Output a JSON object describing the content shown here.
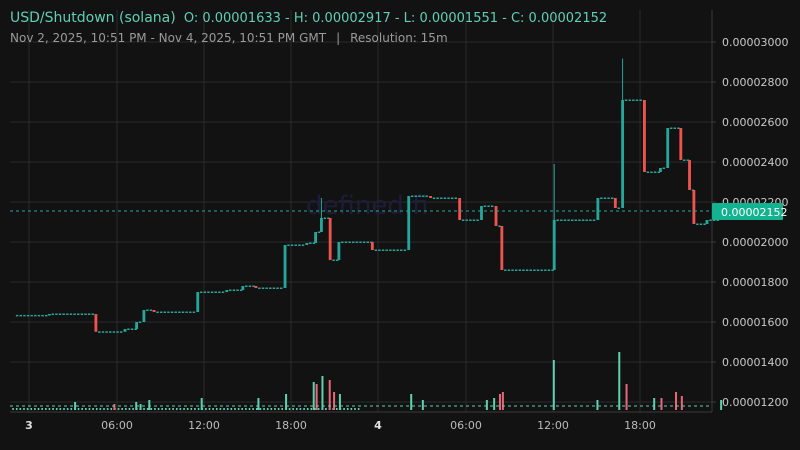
{
  "header": {
    "symbol": "USD/Shutdown (solana)",
    "ohlc": "O: 0.00001633 - H: 0.00002917 - L: 0.00001551 - C: 0.00002152",
    "range": "Nov 2, 2025, 10:51 PM - Nov 4, 2025, 10:51 PM GMT",
    "separator": "|",
    "resolution": "Resolution: 15m"
  },
  "watermark": "defined.fi",
  "colors": {
    "up": "#26a69a",
    "down": "#ef5350",
    "up_volume": "#5fd0b0",
    "down_volume": "#e8687a",
    "background": "#121212",
    "grid": "#2a2a2a",
    "price_tag": "#13b38f"
  },
  "current_price_label": "0.00002152",
  "chart_data": {
    "type": "candlestick",
    "title": "USD/Shutdown (solana)",
    "resolution": "15m",
    "xlabel": "",
    "ylabel": "",
    "ylim": [
      1.12e-05,
      3.1e-05
    ],
    "y_ticks": [
      "0.00003000",
      "0.00002800",
      "0.00002600",
      "0.00002400",
      "0.00002200",
      "0.00002000",
      "0.00001800",
      "0.00001600",
      "0.00001400",
      "0.00001200"
    ],
    "x_ticks": [
      "3",
      "06:00",
      "12:00",
      "18:00",
      "4",
      "06:00",
      "12:00",
      "18:00"
    ],
    "grid": true,
    "summary": {
      "open": 1.633e-05,
      "high": 2.917e-05,
      "low": 1.551e-05,
      "close": 2.152e-05
    },
    "key_moves": [
      {
        "time": "Nov 3 ~04:30",
        "open": 1.64e-05,
        "close": 1.551e-05,
        "dir": "down"
      },
      {
        "time": "Nov 3 ~07:30",
        "open": 1.57e-05,
        "close": 1.66e-05,
        "dir": "up"
      },
      {
        "time": "Nov 3 ~11:30",
        "open": 1.65e-05,
        "close": 1.75e-05,
        "dir": "up"
      },
      {
        "time": "Nov 3 ~17:30",
        "open": 1.78e-05,
        "close": 1.99e-05,
        "dir": "up"
      },
      {
        "time": "Nov 3 ~20:00",
        "open": 2.02e-05,
        "close": 2.12e-05,
        "high": 2.22e-05,
        "dir": "up"
      },
      {
        "time": "Nov 3 ~21:00",
        "open": 2.11e-05,
        "close": 1.91e-05,
        "dir": "down"
      },
      {
        "time": "Nov 4 ~02:00",
        "open": 1.96e-05,
        "close": 2.23e-05,
        "dir": "up"
      },
      {
        "time": "Nov 4 ~05:30",
        "open": 2.22e-05,
        "close": 2.11e-05,
        "dir": "down"
      },
      {
        "time": "Nov 4 ~08:00",
        "open": 2.08e-05,
        "close": 1.86e-05,
        "dir": "down"
      },
      {
        "time": "Nov 4 ~12:00",
        "open": 1.86e-05,
        "close": 2.11e-05,
        "high": 2.39e-05,
        "dir": "up"
      },
      {
        "time": "Nov 4 ~16:45",
        "open": 2.17e-05,
        "close": 2.71e-05,
        "high": 2.917e-05,
        "dir": "up"
      },
      {
        "time": "Nov 4 ~17:30",
        "open": 2.7e-05,
        "close": 2.35e-05,
        "dir": "down"
      },
      {
        "time": "Nov 4 ~19:00",
        "open": 2.37e-05,
        "close": 2.57e-05,
        "dir": "up"
      },
      {
        "time": "Nov 4 ~20:00",
        "open": 2.57e-05,
        "close": 2.41e-05,
        "dir": "down"
      },
      {
        "time": "Nov 4 ~21:00",
        "open": 2.41e-05,
        "close": 2.09e-05,
        "dir": "down"
      },
      {
        "time": "Nov 4 ~22:45",
        "open": 2.12e-05,
        "close": 2.152e-05,
        "dir": "up"
      }
    ]
  }
}
